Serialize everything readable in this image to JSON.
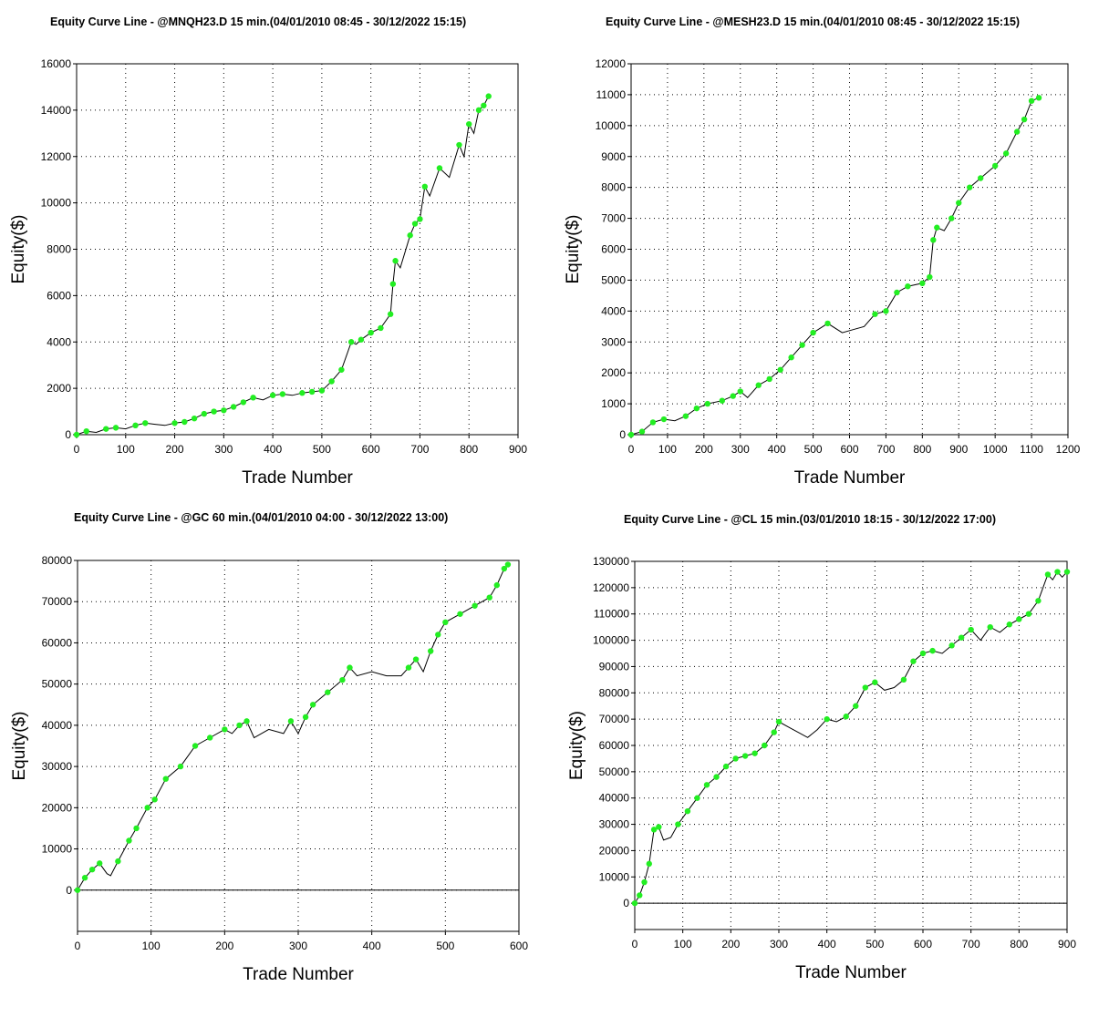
{
  "chart_data": [
    {
      "type": "line",
      "title": "Equity Curve Line - @MNQH23.D 15 min.(04/01/2010 08:45 - 30/12/2022 15:15)",
      "xlabel": "Trade Number",
      "ylabel": "Equity($)",
      "xlim": [
        0,
        900
      ],
      "ylim": [
        0,
        16000
      ],
      "xticks": [
        0,
        100,
        200,
        300,
        400,
        500,
        600,
        700,
        800,
        900
      ],
      "yticks": [
        0,
        2000,
        4000,
        6000,
        8000,
        10000,
        12000,
        14000,
        16000
      ],
      "grid": true,
      "line_color": "#000000",
      "marker_color": "#22ee22",
      "x": [
        0,
        20,
        40,
        60,
        80,
        100,
        120,
        140,
        160,
        180,
        200,
        220,
        240,
        260,
        280,
        300,
        320,
        340,
        360,
        380,
        400,
        420,
        440,
        460,
        480,
        500,
        520,
        540,
        560,
        570,
        580,
        600,
        620,
        640,
        645,
        650,
        660,
        680,
        690,
        700,
        710,
        720,
        740,
        760,
        780,
        790,
        800,
        810,
        820,
        830,
        840
      ],
      "y": [
        0,
        150,
        100,
        250,
        300,
        250,
        400,
        500,
        450,
        400,
        500,
        550,
        700,
        900,
        1000,
        1050,
        1200,
        1400,
        1600,
        1500,
        1700,
        1750,
        1700,
        1800,
        1850,
        1900,
        2300,
        2800,
        4000,
        3900,
        4100,
        4400,
        4600,
        5200,
        6500,
        7500,
        7200,
        8600,
        9100,
        9300,
        10700,
        10300,
        11500,
        11100,
        12500,
        12000,
        13400,
        13000,
        14000,
        14200,
        14600
      ]
    },
    {
      "type": "line",
      "title": "Equity Curve Line - @MESH23.D 15 min.(04/01/2010 08:45 - 30/12/2022 15:15)",
      "xlabel": "Trade Number",
      "ylabel": "Equity($)",
      "xlim": [
        0,
        1200
      ],
      "ylim": [
        0,
        12000
      ],
      "xticks": [
        0,
        100,
        200,
        300,
        400,
        500,
        600,
        700,
        800,
        900,
        1000,
        1100,
        1200
      ],
      "yticks": [
        0,
        1000,
        2000,
        3000,
        4000,
        5000,
        6000,
        7000,
        8000,
        9000,
        10000,
        11000,
        12000
      ],
      "grid": true,
      "line_color": "#000000",
      "marker_color": "#22ee22",
      "x": [
        0,
        30,
        60,
        90,
        120,
        150,
        180,
        210,
        250,
        280,
        300,
        320,
        350,
        380,
        410,
        440,
        470,
        500,
        540,
        580,
        610,
        640,
        670,
        700,
        730,
        760,
        800,
        820,
        830,
        840,
        860,
        880,
        900,
        930,
        960,
        1000,
        1030,
        1060,
        1080,
        1100,
        1120
      ],
      "y": [
        0,
        100,
        400,
        500,
        450,
        600,
        850,
        1000,
        1100,
        1250,
        1400,
        1200,
        1600,
        1800,
        2100,
        2500,
        2900,
        3300,
        3600,
        3300,
        3400,
        3500,
        3900,
        4000,
        4600,
        4800,
        4900,
        5100,
        6300,
        6700,
        6600,
        7000,
        7500,
        8000,
        8300,
        8700,
        9100,
        9800,
        10200,
        10800,
        10900
      ]
    },
    {
      "type": "line",
      "title": "Equity Curve Line - @GC 60 min.(04/01/2010 04:00 - 30/12/2022 13:00)",
      "xlabel": "Trade Number",
      "ylabel": "Equity($)",
      "xlim": [
        0,
        600
      ],
      "ylim": [
        -10000,
        80000
      ],
      "xticks": [
        0,
        100,
        200,
        300,
        400,
        500,
        600
      ],
      "yticks": [
        0,
        10000,
        20000,
        30000,
        40000,
        50000,
        60000,
        70000,
        80000
      ],
      "grid": true,
      "line_color": "#000000",
      "marker_color": "#22ee22",
      "x": [
        0,
        10,
        20,
        30,
        40,
        45,
        55,
        70,
        80,
        95,
        105,
        120,
        140,
        160,
        180,
        200,
        210,
        220,
        230,
        240,
        260,
        280,
        290,
        300,
        310,
        320,
        340,
        360,
        370,
        380,
        400,
        420,
        440,
        450,
        460,
        470,
        480,
        490,
        500,
        520,
        540,
        560,
        570,
        580,
        585
      ],
      "y": [
        0,
        3000,
        5000,
        6500,
        4000,
        3500,
        7000,
        12000,
        15000,
        20000,
        22000,
        27000,
        30000,
        35000,
        37000,
        39000,
        38000,
        40000,
        41000,
        37000,
        39000,
        38000,
        41000,
        38000,
        42000,
        45000,
        48000,
        51000,
        54000,
        52000,
        53000,
        52000,
        52000,
        54000,
        56000,
        53000,
        58000,
        62000,
        65000,
        67000,
        69000,
        71000,
        74000,
        78000,
        79000
      ]
    },
    {
      "type": "line",
      "title": "Equity Curve Line - @CL 15 min.(03/01/2010 18:15 - 30/12/2022 17:00)",
      "xlabel": "Trade Number",
      "ylabel": "Equity($)",
      "xlim": [
        0,
        900
      ],
      "ylim": [
        -10000,
        130000
      ],
      "xticks": [
        0,
        100,
        200,
        300,
        400,
        500,
        600,
        700,
        800,
        900
      ],
      "yticks": [
        0,
        10000,
        20000,
        30000,
        40000,
        50000,
        60000,
        70000,
        80000,
        90000,
        100000,
        110000,
        120000,
        130000
      ],
      "grid": true,
      "line_color": "#000000",
      "marker_color": "#22ee22",
      "x": [
        0,
        10,
        20,
        30,
        40,
        50,
        60,
        75,
        90,
        110,
        130,
        150,
        170,
        190,
        210,
        230,
        250,
        270,
        290,
        300,
        320,
        340,
        360,
        380,
        400,
        420,
        440,
        460,
        480,
        500,
        520,
        540,
        560,
        580,
        600,
        620,
        640,
        660,
        680,
        700,
        720,
        740,
        760,
        780,
        800,
        820,
        840,
        860,
        870,
        880,
        890,
        900
      ],
      "y": [
        0,
        3000,
        8000,
        15000,
        28000,
        29000,
        24000,
        25000,
        30000,
        35000,
        40000,
        45000,
        48000,
        52000,
        55000,
        56000,
        57000,
        60000,
        65000,
        69000,
        67000,
        65000,
        63000,
        66000,
        70000,
        69000,
        71000,
        75000,
        82000,
        84000,
        81000,
        82000,
        85000,
        92000,
        95000,
        96000,
        95000,
        98000,
        101000,
        104000,
        100000,
        105000,
        103000,
        106000,
        108000,
        110000,
        115000,
        125000,
        123000,
        126000,
        124000,
        126000
      ]
    }
  ]
}
